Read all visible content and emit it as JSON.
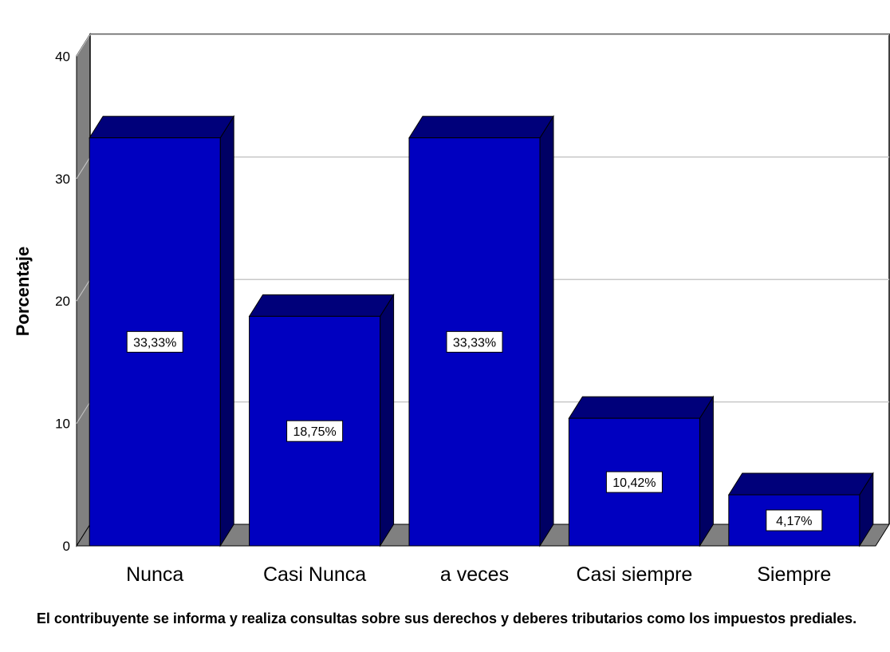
{
  "chart_data": {
    "type": "bar",
    "categories": [
      "Nunca",
      "Casi Nunca",
      "a veces",
      "Casi siempre",
      "Siempre"
    ],
    "values": [
      33.33,
      18.75,
      33.33,
      10.42,
      4.17
    ],
    "data_labels": [
      "33,33%",
      "18,75%",
      "33,33%",
      "10,42%",
      "4,17%"
    ],
    "ylabel": "Porcentaje",
    "xlabel": "El contribuyente se informa y realiza consultas sobre sus derechos y deberes tributarios como los impuestos prediales.",
    "ylim": [
      0,
      42
    ],
    "yticks": [
      "0",
      "10",
      "20",
      "30",
      "40"
    ],
    "grid": true,
    "style": "3d",
    "colors": {
      "bar_front": "#0000C0",
      "bar_top": "#00007A",
      "bar_side": "#000064",
      "wall": "#808080",
      "grid": "#C8C8C8"
    }
  }
}
